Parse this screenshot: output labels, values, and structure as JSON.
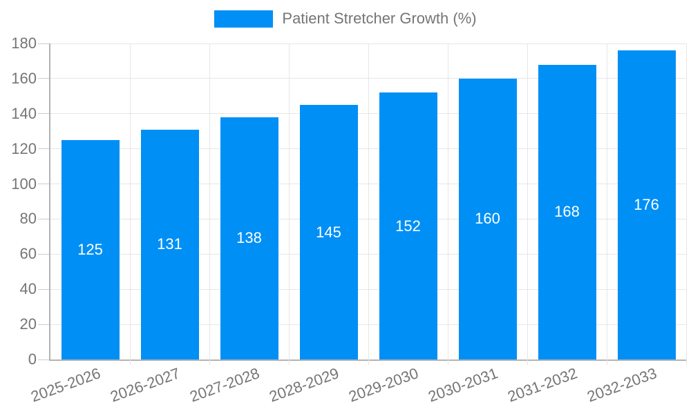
{
  "chart_data": {
    "type": "bar",
    "title": "Patient Stretcher Growth (%)",
    "categories": [
      "2025-2026",
      "2026-2027",
      "2027-2028",
      "2028-2029",
      "2029-2030",
      "2030-2031",
      "2031-2032",
      "2032-2033"
    ],
    "values": [
      125,
      131,
      138,
      145,
      152,
      160,
      168,
      176
    ],
    "xlabel": "",
    "ylabel": "",
    "ylim": [
      0,
      180
    ],
    "yticks": [
      0,
      20,
      40,
      60,
      80,
      100,
      120,
      140,
      160,
      180
    ],
    "grid": true,
    "legend_position": "top",
    "value_labels_shown": true,
    "colors": {
      "bar": "#008FF5",
      "value_label": "#FFFFFF",
      "axis_label": "#757575",
      "axis_line": "#B3B3B3",
      "gridline": "#E6E6E6",
      "tick": "#CCCCCC"
    }
  },
  "legend": {
    "label": "Patient Stretcher Growth (%)"
  }
}
